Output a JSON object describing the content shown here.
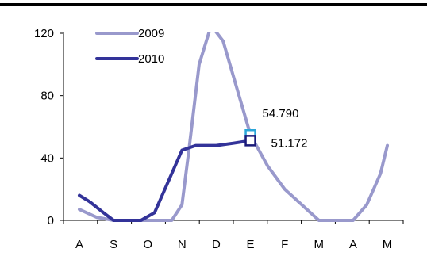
{
  "chart_data": {
    "type": "line",
    "categories": [
      "A",
      "S",
      "O",
      "N",
      "D",
      "E",
      "F",
      "M",
      "A",
      "M"
    ],
    "ylim": [
      0,
      120
    ],
    "yticks": [
      0,
      40,
      80,
      120
    ],
    "grid": false,
    "legend": "top-left",
    "series": [
      {
        "name": "2009",
        "color": "#9999cc",
        "points": [
          {
            "x": 0,
            "y": 7
          },
          {
            "x": 0.5,
            "y": 2
          },
          {
            "x": 1,
            "y": 0
          },
          {
            "x": 2,
            "y": 0
          },
          {
            "x": 2.7,
            "y": 0
          },
          {
            "x": 3,
            "y": 10
          },
          {
            "x": 3.2,
            "y": 45
          },
          {
            "x": 3.5,
            "y": 100
          },
          {
            "x": 3.85,
            "y": 125
          },
          {
            "x": 4.2,
            "y": 115
          },
          {
            "x": 4.6,
            "y": 85
          },
          {
            "x": 5,
            "y": 54.79
          },
          {
            "x": 5.5,
            "y": 35
          },
          {
            "x": 6,
            "y": 20
          },
          {
            "x": 6.5,
            "y": 10
          },
          {
            "x": 7,
            "y": 0
          },
          {
            "x": 8,
            "y": 0
          },
          {
            "x": 8.4,
            "y": 10
          },
          {
            "x": 8.8,
            "y": 30
          },
          {
            "x": 9,
            "y": 48
          }
        ]
      },
      {
        "name": "2010",
        "color": "#333399",
        "points": [
          {
            "x": 0,
            "y": 16
          },
          {
            "x": 0.3,
            "y": 12
          },
          {
            "x": 0.7,
            "y": 5
          },
          {
            "x": 1,
            "y": 0
          },
          {
            "x": 1.8,
            "y": 0
          },
          {
            "x": 2.2,
            "y": 5
          },
          {
            "x": 2.6,
            "y": 25
          },
          {
            "x": 3,
            "y": 45
          },
          {
            "x": 3.4,
            "y": 48
          },
          {
            "x": 4,
            "y": 48
          },
          {
            "x": 4.5,
            "y": 49.5
          },
          {
            "x": 5,
            "y": 51.172
          }
        ]
      }
    ],
    "annotations": [
      {
        "label": "54.790",
        "x": 5,
        "y": 54.79,
        "series": "2009",
        "marker_color": "#2aa6d8"
      },
      {
        "label": "51.172",
        "x": 5,
        "y": 51.172,
        "series": "2010",
        "marker_color": "#1a1a7a"
      }
    ]
  }
}
